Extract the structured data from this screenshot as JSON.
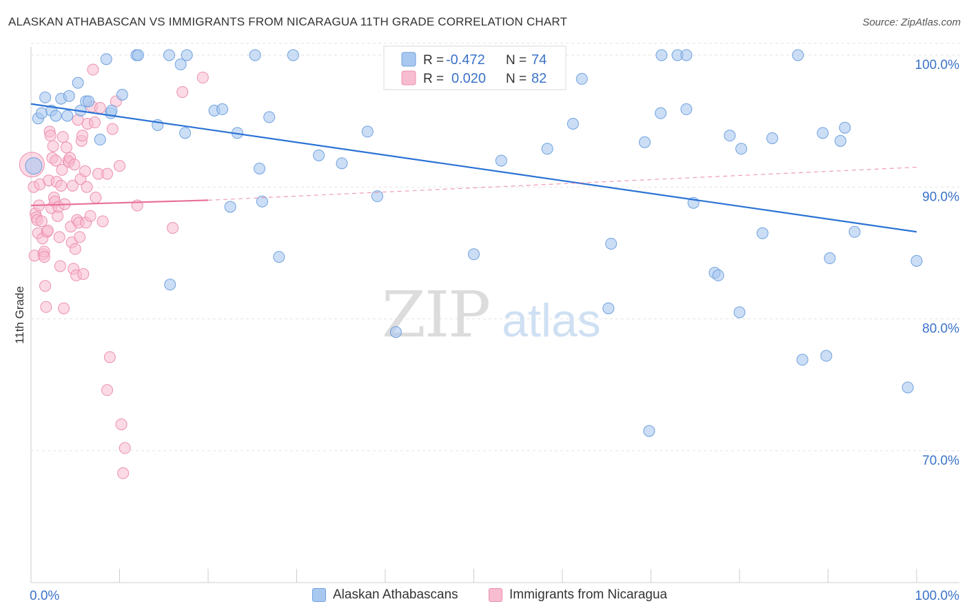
{
  "header": {
    "title": "ALASKAN ATHABASCAN VS IMMIGRANTS FROM NICARAGUA 11TH GRADE CORRELATION CHART",
    "source": "Source: ZipAtlas.com"
  },
  "watermark": {
    "zip": "ZIP",
    "atlas": "atlas"
  },
  "colors": {
    "blue_fill": "#a9c8f0",
    "blue_stroke": "#6fa0de",
    "blue_line": "#2b72d4",
    "pink_fill": "#f7bcd0",
    "pink_stroke": "#ec8fae",
    "pink_line": "#e8709a",
    "value_text": "#3a72c8",
    "grid": "#e3e3e3",
    "axis": "#cccccc"
  },
  "legend_top": {
    "rows": [
      {
        "r_label": "R =",
        "r_value": "-0.472",
        "n_label": "N =",
        "n_value": "74"
      },
      {
        "r_label": "R =",
        "r_value": "0.020",
        "n_label": "N =",
        "n_value": "82"
      }
    ]
  },
  "legend_bottom": {
    "items": [
      {
        "label": "Alaskan Athabascans"
      },
      {
        "label": "Immigrants from Nicaragua"
      }
    ]
  },
  "chart_data": {
    "type": "scatter",
    "title": "ALASKAN ATHABASCAN VS IMMIGRANTS FROM NICARAGUA 11TH GRADE CORRELATION CHART",
    "xlabel": "",
    "ylabel": "11th Grade",
    "xlim": [
      0,
      100
    ],
    "ylim": [
      60,
      102
    ],
    "x_tick_labels": [
      "0.0%",
      "100.0%"
    ],
    "y_ticks": [
      70,
      80,
      90,
      100
    ],
    "y_tick_labels": [
      "70.0%",
      "80.0%",
      "90.0%",
      "100.0%"
    ],
    "grid": true,
    "legend_position": "top-center",
    "series": [
      {
        "name": "Alaskan Athabascans",
        "r": -0.472,
        "n": 74,
        "trend": {
          "x": [
            0,
            100
          ],
          "y": [
            96.3,
            86.6
          ],
          "style": "solid"
        },
        "points": [
          [
            0.3,
            91.6
          ],
          [
            0.8,
            95.2
          ],
          [
            1.2,
            95.6
          ],
          [
            1.6,
            96.8
          ],
          [
            2.3,
            95.8
          ],
          [
            2.8,
            95.4
          ],
          [
            3.4,
            96.7
          ],
          [
            4.1,
            95.4
          ],
          [
            4.3,
            96.9
          ],
          [
            5.3,
            97.9
          ],
          [
            5.6,
            95.8
          ],
          [
            6.2,
            96.5
          ],
          [
            6.5,
            96.5
          ],
          [
            7.8,
            93.6
          ],
          [
            8.5,
            99.7
          ],
          [
            9.0,
            95.6
          ],
          [
            9.1,
            95.8
          ],
          [
            10.3,
            97.0
          ],
          [
            11.9,
            100.0
          ],
          [
            12.1,
            100.0
          ],
          [
            14.3,
            94.7
          ],
          [
            15.6,
            100.0
          ],
          [
            15.7,
            82.6
          ],
          [
            16.9,
            99.3
          ],
          [
            17.4,
            94.1
          ],
          [
            17.6,
            100.0
          ],
          [
            20.7,
            95.8
          ],
          [
            21.6,
            95.9
          ],
          [
            23.3,
            94.1
          ],
          [
            22.5,
            88.5
          ],
          [
            25.3,
            100.0
          ],
          [
            25.8,
            91.4
          ],
          [
            26.1,
            88.9
          ],
          [
            26.9,
            95.3
          ],
          [
            28.0,
            84.7
          ],
          [
            29.6,
            100.0
          ],
          [
            32.5,
            92.4
          ],
          [
            35.1,
            91.8
          ],
          [
            38.0,
            94.2
          ],
          [
            39.1,
            89.3
          ],
          [
            41.2,
            79.0
          ],
          [
            50.0,
            84.9
          ],
          [
            53.1,
            92.0
          ],
          [
            58.3,
            92.9
          ],
          [
            61.2,
            94.8
          ],
          [
            62.2,
            98.2
          ],
          [
            65.2,
            80.8
          ],
          [
            65.5,
            85.7
          ],
          [
            69.3,
            93.4
          ],
          [
            69.8,
            71.5
          ],
          [
            71.1,
            95.6
          ],
          [
            71.2,
            100.0
          ],
          [
            73.0,
            100.0
          ],
          [
            74.0,
            95.9
          ],
          [
            74.0,
            100.0
          ],
          [
            74.8,
            88.8
          ],
          [
            77.2,
            83.5
          ],
          [
            77.6,
            83.3
          ],
          [
            78.9,
            93.9
          ],
          [
            80.0,
            80.5
          ],
          [
            80.2,
            92.9
          ],
          [
            82.6,
            86.5
          ],
          [
            83.7,
            93.7
          ],
          [
            86.6,
            100.0
          ],
          [
            87.1,
            76.9
          ],
          [
            89.4,
            94.1
          ],
          [
            89.8,
            77.2
          ],
          [
            90.2,
            84.6
          ],
          [
            91.4,
            93.5
          ],
          [
            91.9,
            94.5
          ],
          [
            93.0,
            86.6
          ],
          [
            99.0,
            74.8
          ],
          [
            100.0,
            84.4
          ]
        ]
      },
      {
        "name": "Immigrants from Nicaragua",
        "r": 0.02,
        "n": 82,
        "trend": {
          "x": [
            0,
            20,
            100
          ],
          "y": [
            88.6,
            89.0,
            91.5
          ],
          "style": "solid-then-dashed"
        },
        "points": [
          [
            0.1,
            91.7
          ],
          [
            0.3,
            90.0
          ],
          [
            0.4,
            84.8
          ],
          [
            0.5,
            88.0
          ],
          [
            0.6,
            87.7
          ],
          [
            0.7,
            87.5
          ],
          [
            0.8,
            86.5
          ],
          [
            0.9,
            88.6
          ],
          [
            1.0,
            90.2
          ],
          [
            1.2,
            87.4
          ],
          [
            1.3,
            86.1
          ],
          [
            1.4,
            84.9
          ],
          [
            1.5,
            85.1
          ],
          [
            1.5,
            84.7
          ],
          [
            1.6,
            82.5
          ],
          [
            1.7,
            80.9
          ],
          [
            1.8,
            86.6
          ],
          [
            1.9,
            86.7
          ],
          [
            2.0,
            90.5
          ],
          [
            2.1,
            94.2
          ],
          [
            2.2,
            93.9
          ],
          [
            2.3,
            88.4
          ],
          [
            2.4,
            92.2
          ],
          [
            2.5,
            93.1
          ],
          [
            2.6,
            89.2
          ],
          [
            2.7,
            88.9
          ],
          [
            2.8,
            92.0
          ],
          [
            2.9,
            90.4
          ],
          [
            3.0,
            87.8
          ],
          [
            3.1,
            88.5
          ],
          [
            3.2,
            86.2
          ],
          [
            3.3,
            84.0
          ],
          [
            3.4,
            90.1
          ],
          [
            3.5,
            91.3
          ],
          [
            3.6,
            93.8
          ],
          [
            3.7,
            80.8
          ],
          [
            3.8,
            88.7
          ],
          [
            4.0,
            93.0
          ],
          [
            4.2,
            92.0
          ],
          [
            4.3,
            91.9
          ],
          [
            4.4,
            92.2
          ],
          [
            4.5,
            87.0
          ],
          [
            4.6,
            85.8
          ],
          [
            4.7,
            90.1
          ],
          [
            4.8,
            83.8
          ],
          [
            4.9,
            91.7
          ],
          [
            5.0,
            85.3
          ],
          [
            5.1,
            83.3
          ],
          [
            5.2,
            87.5
          ],
          [
            5.3,
            95.1
          ],
          [
            5.4,
            87.3
          ],
          [
            5.5,
            86.2
          ],
          [
            5.6,
            90.6
          ],
          [
            5.7,
            93.5
          ],
          [
            5.8,
            93.9
          ],
          [
            5.9,
            83.4
          ],
          [
            6.1,
            91.2
          ],
          [
            6.2,
            87.3
          ],
          [
            6.3,
            90.0
          ],
          [
            6.4,
            94.8
          ],
          [
            6.7,
            87.8
          ],
          [
            6.9,
            96.1
          ],
          [
            7.0,
            98.9
          ],
          [
            7.2,
            94.9
          ],
          [
            7.3,
            89.2
          ],
          [
            7.6,
            91.0
          ],
          [
            7.8,
            96.0
          ],
          [
            8.1,
            87.4
          ],
          [
            8.6,
            91.0
          ],
          [
            8.9,
            77.1
          ],
          [
            8.6,
            74.6
          ],
          [
            9.2,
            94.4
          ],
          [
            9.6,
            96.5
          ],
          [
            10.0,
            91.6
          ],
          [
            10.2,
            72.0
          ],
          [
            10.6,
            70.2
          ],
          [
            10.4,
            68.3
          ],
          [
            12.0,
            88.6
          ],
          [
            16.0,
            86.9
          ],
          [
            17.1,
            97.2
          ],
          [
            19.4,
            98.3
          ]
        ]
      }
    ]
  }
}
